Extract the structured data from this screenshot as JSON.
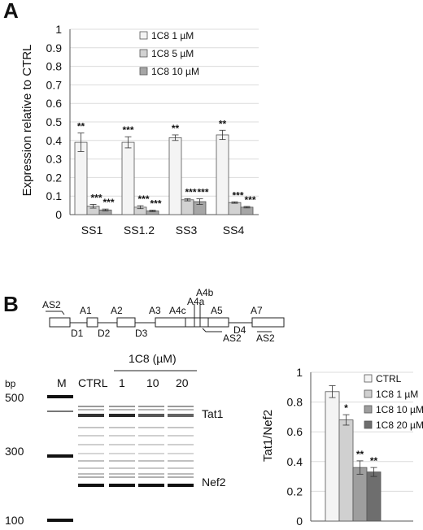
{
  "panel_a": {
    "letter": "A",
    "chart_data": {
      "type": "bar",
      "ylabel": "Expression relative to CTRL",
      "ylim": [
        0,
        1
      ],
      "yticks": [
        "0",
        "0.1",
        "0.2",
        "0.3",
        "0.4",
        "0.5",
        "0.6",
        "0.7",
        "0.8",
        "0.9",
        "1"
      ],
      "categories": [
        "SS1",
        "SS1.2",
        "SS3",
        "SS4"
      ],
      "series": [
        {
          "name": "1C8 1 µM",
          "color": "#f4f4f4",
          "values": [
            0.39,
            0.39,
            0.415,
            0.43
          ],
          "errors": [
            0.05,
            0.03,
            0.015,
            0.025
          ],
          "sig": [
            "**",
            "***",
            "**",
            "**"
          ]
        },
        {
          "name": "1C8 5 µM",
          "color": "#d2d2d2",
          "values": [
            0.045,
            0.04,
            0.08,
            0.065
          ],
          "errors": [
            0.01,
            0.008,
            0.006,
            0.004
          ],
          "sig": [
            "***",
            "***",
            "***",
            "***"
          ]
        },
        {
          "name": "1C8 10 µM",
          "color": "#a6a6a6",
          "values": [
            0.025,
            0.02,
            0.07,
            0.04
          ],
          "errors": [
            0.005,
            0.004,
            0.015,
            0.004
          ],
          "sig": [
            "***",
            "***",
            "***",
            "***"
          ]
        }
      ],
      "legend_position": "top-right"
    }
  },
  "panel_b": {
    "letter": "B",
    "map_labels": {
      "exons_top": [
        "A1",
        "A2",
        "A3",
        "A4c",
        "A5",
        "A7"
      ],
      "exons_upper": [
        "A4a",
        "A4b"
      ],
      "donors": [
        "D1",
        "D2",
        "D3",
        "D4"
      ],
      "primers": [
        "AS2",
        "AS2",
        "AS2"
      ]
    },
    "gel": {
      "bp_label": "bp",
      "marker_label": "M",
      "ctrl_label": "CTRL",
      "group_label": "1C8 (µM)",
      "doses": [
        "1",
        "10",
        "20"
      ],
      "bp_ticks": [
        "500",
        "300",
        "100"
      ],
      "band_labels": [
        "Tat1",
        "Nef2"
      ]
    },
    "chart_data": {
      "type": "bar",
      "ylabel": "Tat1/Nef2",
      "ylim": [
        0,
        1
      ],
      "yticks": [
        "0",
        "0.2",
        "0.4",
        "0.6",
        "0.8",
        "1"
      ],
      "categories": [
        "CTRL",
        "1C8 1 µM",
        "1C8 10 µM",
        "1C8 20 µM"
      ],
      "values": [
        0.87,
        0.68,
        0.36,
        0.33
      ],
      "errors": [
        0.04,
        0.035,
        0.045,
        0.03
      ],
      "sig": [
        "",
        "*",
        "**",
        "**"
      ],
      "colors": [
        "#f4f4f4",
        "#d0d0d0",
        "#9e9e9e",
        "#6e6e6e"
      ],
      "legend_position": "top-right"
    }
  }
}
